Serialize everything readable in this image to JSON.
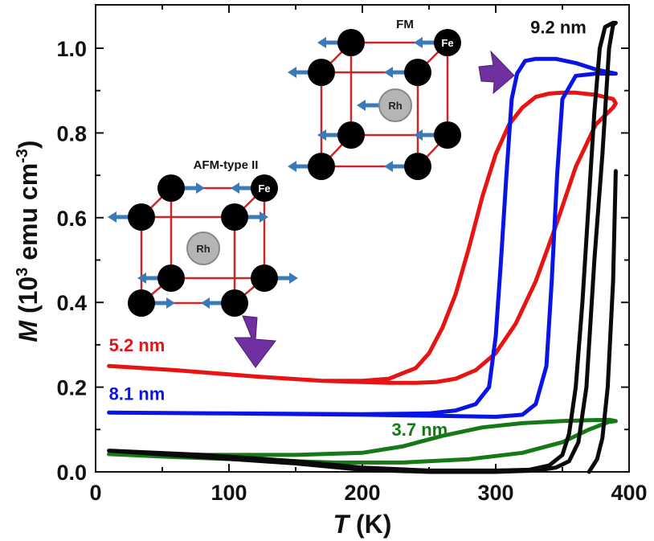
{
  "chart_data": {
    "type": "line",
    "title": "",
    "xlabel": "T (K)",
    "xlabel_italic_part": "T",
    "xlabel_rest": " (K)",
    "ylabel_italic_part": "M",
    "ylabel_rest": " (10",
    "ylabel_sup1": "3",
    "ylabel_mid": " emu cm",
    "ylabel_sup2": "-3",
    "ylabel_end": ")",
    "xlim": [
      0,
      400
    ],
    "ylim": [
      0,
      1.07
    ],
    "xticks": [
      0,
      100,
      200,
      300,
      400
    ],
    "xtick_labels": [
      "0",
      "100",
      "200",
      "300",
      "400"
    ],
    "xminor": [
      50,
      150,
      250,
      350
    ],
    "yticks": [
      0.0,
      0.2,
      0.4,
      0.6,
      0.8,
      1.0
    ],
    "ytick_labels": [
      "0.0",
      "0.2",
      "0.4",
      "0.6",
      "0.8",
      "1.0"
    ],
    "yminor": [
      0.1,
      0.3,
      0.5,
      0.7,
      0.9
    ],
    "grid": false,
    "legend": "none (direct labels)",
    "series": [
      {
        "name": "5.2 nm",
        "color": "#e81313",
        "label_position": [
          10,
          0.285
        ],
        "x": [
          10,
          60,
          120,
          170,
          200,
          220,
          240,
          255,
          270,
          285,
          300,
          315,
          330,
          345,
          360,
          375,
          388,
          390,
          388,
          375,
          360,
          350,
          340,
          330,
          320,
          310,
          300,
          290,
          280,
          270,
          260,
          250,
          240,
          220,
          200,
          170,
          120,
          60,
          10
        ],
        "y": [
          0.25,
          0.24,
          0.225,
          0.215,
          0.212,
          0.21,
          0.21,
          0.212,
          0.22,
          0.24,
          0.28,
          0.35,
          0.45,
          0.58,
          0.72,
          0.82,
          0.86,
          0.87,
          0.88,
          0.89,
          0.895,
          0.895,
          0.893,
          0.885,
          0.86,
          0.82,
          0.75,
          0.65,
          0.53,
          0.42,
          0.34,
          0.28,
          0.245,
          0.22,
          0.215,
          0.215,
          0.225,
          0.24,
          0.25
        ]
      },
      {
        "name": "8.1 nm",
        "color": "#0a14e6",
        "label_position": [
          10,
          0.17
        ],
        "x": [
          10,
          100,
          200,
          260,
          300,
          320,
          330,
          338,
          342,
          346,
          350,
          360,
          375,
          390,
          375,
          360,
          345,
          330,
          322,
          316,
          312,
          308,
          304,
          300,
          295,
          285,
          270,
          250,
          200,
          100,
          10
        ],
        "y": [
          0.14,
          0.138,
          0.135,
          0.132,
          0.13,
          0.135,
          0.16,
          0.25,
          0.45,
          0.7,
          0.88,
          0.935,
          0.94,
          0.94,
          0.95,
          0.965,
          0.975,
          0.975,
          0.97,
          0.94,
          0.88,
          0.7,
          0.5,
          0.32,
          0.2,
          0.16,
          0.145,
          0.138,
          0.136,
          0.138,
          0.14
        ]
      },
      {
        "name": "3.7 nm",
        "color": "#157a15",
        "label_position": [
          222,
          0.085
        ],
        "x": [
          10,
          60,
          120,
          180,
          230,
          280,
          320,
          350,
          370,
          385,
          390,
          385,
          370,
          350,
          320,
          290,
          260,
          230,
          200,
          150,
          100,
          60,
          10
        ],
        "y": [
          0.042,
          0.035,
          0.028,
          0.022,
          0.022,
          0.03,
          0.045,
          0.07,
          0.1,
          0.118,
          0.12,
          0.123,
          0.122,
          0.12,
          0.115,
          0.105,
          0.085,
          0.06,
          0.045,
          0.04,
          0.04,
          0.04,
          0.042
        ]
      },
      {
        "name": "9.2 nm",
        "color": "#0a0a0a",
        "label_position": [
          326,
          1.035
        ],
        "x": [
          10,
          80,
          150,
          200,
          250,
          300,
          330,
          345,
          355,
          362,
          368,
          374,
          380,
          385,
          388,
          390,
          388,
          382,
          378,
          374,
          370,
          365,
          360,
          355,
          350,
          340,
          325,
          300,
          250,
          200,
          150,
          80,
          10
        ],
        "y": [
          0.05,
          0.035,
          0.02,
          0.005,
          0.0,
          0.0,
          0.003,
          0.01,
          0.025,
          0.07,
          0.2,
          0.5,
          0.75,
          1.0,
          1.055,
          1.06,
          1.06,
          1.05,
          1.0,
          0.85,
          0.65,
          0.4,
          0.2,
          0.09,
          0.04,
          0.015,
          0.005,
          0.003,
          0.003,
          0.01,
          0.025,
          0.04,
          0.05
        ]
      },
      {
        "name": "9.2 nm (high-T branch)",
        "color": "#0a0a0a",
        "x": [
          370,
          376,
          380,
          384,
          388,
          390
        ],
        "y": [
          0.0,
          0.03,
          0.08,
          0.2,
          0.45,
          0.71
        ]
      }
    ],
    "annotations": [
      {
        "type": "inset",
        "title": "FM",
        "atoms": [
          "Fe",
          "Rh"
        ],
        "description": "ferromagnetic FeRh unit cell, all Fe moments aligned left"
      },
      {
        "type": "inset",
        "title": "AFM-type II",
        "atoms": [
          "Fe",
          "Rh"
        ],
        "description": "antiferromagnetic FeRh unit cell, alternating Fe moments"
      },
      {
        "type": "arrow",
        "color": "#7030a0",
        "points_to": "FM transition (high T)"
      },
      {
        "type": "arrow",
        "color": "#7030a0",
        "points_to": "AFM state (low T)"
      }
    ]
  },
  "insets": {
    "fm": {
      "title": "FM",
      "fe_label": "Fe",
      "rh_label": "Rh"
    },
    "afm": {
      "title": "AFM-type II",
      "fe_label": "Fe",
      "rh_label": "Rh"
    }
  }
}
